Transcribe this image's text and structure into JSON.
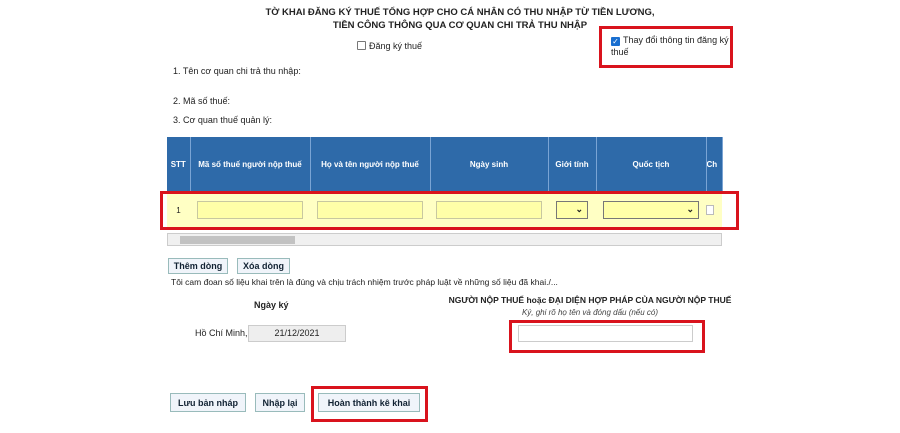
{
  "form": {
    "title_line1": "TỜ KHAI ĐĂNG KÝ THUẾ TỔNG HỢP CHO CÁ NHÂN CÓ THU NHẬP TỪ TIỀN LƯƠNG,",
    "title_line2": "TIỀN CÔNG THÔNG QUA CƠ QUAN CHI TRẢ THU NHẬP",
    "register_checkbox": {
      "label": "Đăng ký thuế",
      "checked": false
    },
    "change_checkbox": {
      "label": "Thay đổi thông tin đăng ký thuế",
      "checked": true
    },
    "field1": "1. Tên cơ quan chi trả thu nhập:",
    "field2": "2. Mã số thuế:",
    "field3": "3. Cơ quan thuế quản lý:"
  },
  "table": {
    "headers": [
      "STT",
      "Mã số thuế người nộp thuế",
      "Họ và tên người nộp thuế",
      "Ngày sinh",
      "Giới tính",
      "Quốc tịch",
      "Ch"
    ],
    "rows": [
      {
        "stt": "1"
      }
    ]
  },
  "buttons": {
    "add_row": "Thêm dòng",
    "delete_row": "Xóa dòng",
    "save_draft": "Lưu bản nháp",
    "reset": "Nhập lại",
    "complete": "Hoàn thành kê khai"
  },
  "declaration": "Tôi cam đoan số liệu khai trên là đúng và chịu trách nhiệm trước pháp luật về những số liệu đã khai./...",
  "sign": {
    "date_label": "Ngày ký",
    "place": "Hồ Chí Minh,",
    "date": "21/12/2021",
    "signer_title": "NGƯỜI NỘP THUẾ hoặc ĐẠI DIỆN HỢP PHÁP CỦA NGƯỜI NỘP THUẾ",
    "signer_hint": "Ký, ghi rõ họ tên và đóng dấu (nếu có)",
    "signer_value": ""
  },
  "colors": {
    "header": "#2e6aa9",
    "row": "#ffffc4",
    "highlight": "#d9131d"
  }
}
